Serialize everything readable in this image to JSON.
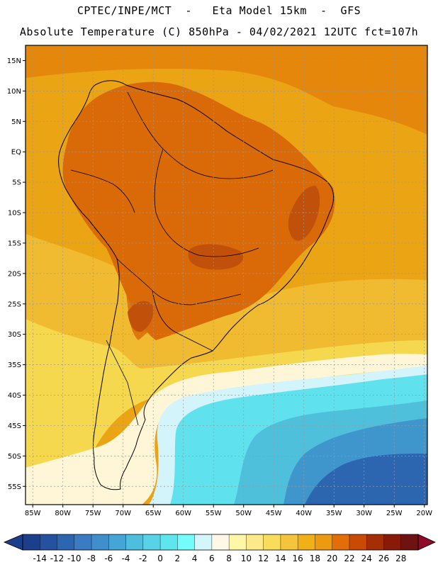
{
  "title": {
    "line1": "CPTEC/INPE/MCT  -   Eta Model 15km  -  GFS",
    "line2": "Absolute Temperature (C) 850hPa - 04/02/2021 12UTC fct=107h"
  },
  "map": {
    "lat_labels": [
      "15N",
      "10N",
      "5N",
      "EQ",
      "5S",
      "10S",
      "15S",
      "20S",
      "25S",
      "30S",
      "35S",
      "40S",
      "45S",
      "50S",
      "55S"
    ],
    "lon_labels": [
      "85W",
      "80W",
      "75W",
      "70W",
      "65W",
      "60W",
      "55W",
      "50W",
      "45W",
      "40W",
      "35W",
      "30W",
      "25W",
      "20W"
    ]
  },
  "colorbar": {
    "labels": [
      "-14",
      "-12",
      "-10",
      "-8",
      "-6",
      "-4",
      "-2",
      "0",
      "2",
      "4",
      "6",
      "8",
      "10",
      "12",
      "14",
      "16",
      "18",
      "20",
      "22",
      "24",
      "26",
      "28"
    ],
    "colors": [
      "#1b3f8b",
      "#24529e",
      "#2c66b0",
      "#3a7cc2",
      "#3f8fcc",
      "#45a5d6",
      "#4fbddd",
      "#58d2e6",
      "#5ee6ee",
      "#74fbfb",
      "#d2f6fa",
      "#fff8e6",
      "#fff7a8",
      "#fbe98a",
      "#f8dc5c",
      "#f3c43c",
      "#f0b018",
      "#ec9a10",
      "#e36d06",
      "#c94a05",
      "#a62e04",
      "#8a1a08",
      "#6e1212"
    ]
  },
  "fields": {
    "ocean_warm": "#eba414",
    "tropical_warm": "#e4870b",
    "land_hot": "#d96a07",
    "land_very_hot": "#c0500a",
    "subtropic": "#f0bb30",
    "mid_lat": "#f6d84f",
    "cold_front": "#fff6d8",
    "cool_1": "#d2f4fa",
    "cool_2": "#5fe2ee",
    "cool_3": "#4fc0dc",
    "cool_4": "#3f96cc",
    "cool_5": "#2c66b0"
  }
}
